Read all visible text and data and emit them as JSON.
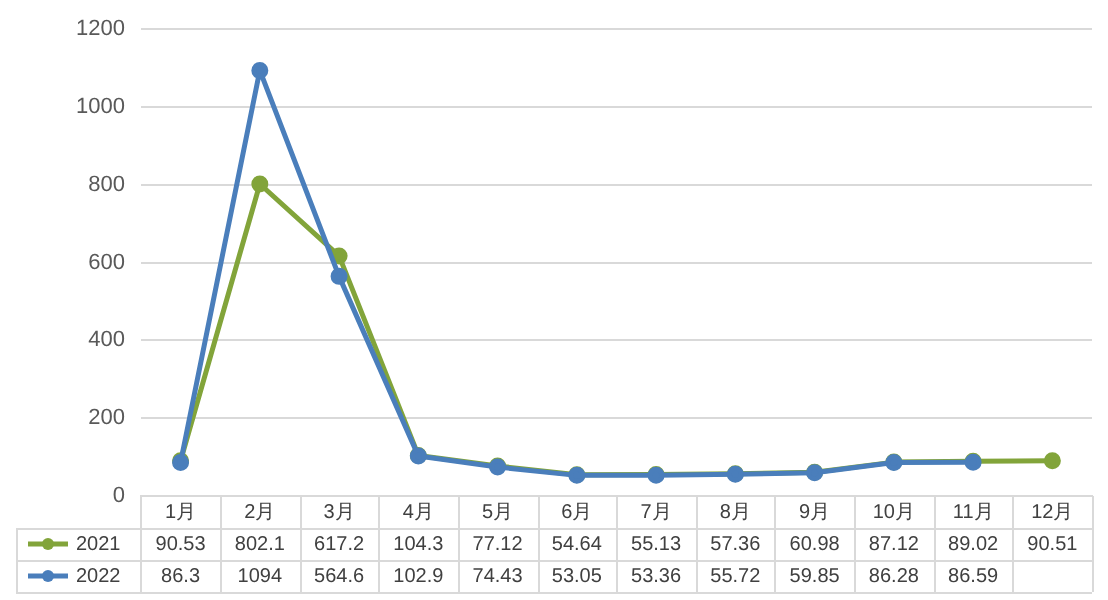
{
  "chart_data": {
    "type": "line",
    "categories": [
      "1月",
      "2月",
      "3月",
      "4月",
      "5月",
      "6月",
      "7月",
      "8月",
      "9月",
      "10月",
      "11月",
      "12月"
    ],
    "series": [
      {
        "name": "2021",
        "color": "#82a43a",
        "values": [
          90.53,
          802.1,
          617.2,
          104.3,
          77.12,
          54.64,
          55.13,
          57.36,
          60.98,
          87.12,
          89.02,
          90.51
        ]
      },
      {
        "name": "2022",
        "color": "#4a7ebb",
        "values": [
          86.3,
          1094,
          564.6,
          102.9,
          74.43,
          53.05,
          53.36,
          55.72,
          59.85,
          86.28,
          86.59,
          null
        ]
      }
    ],
    "ylim": [
      0,
      1200
    ],
    "yticks": [
      0,
      200,
      400,
      600,
      800,
      1000,
      1200
    ],
    "grid": "y",
    "legend": "bottom",
    "marker": "circle",
    "line_style": "solid",
    "data_labels": true
  }
}
